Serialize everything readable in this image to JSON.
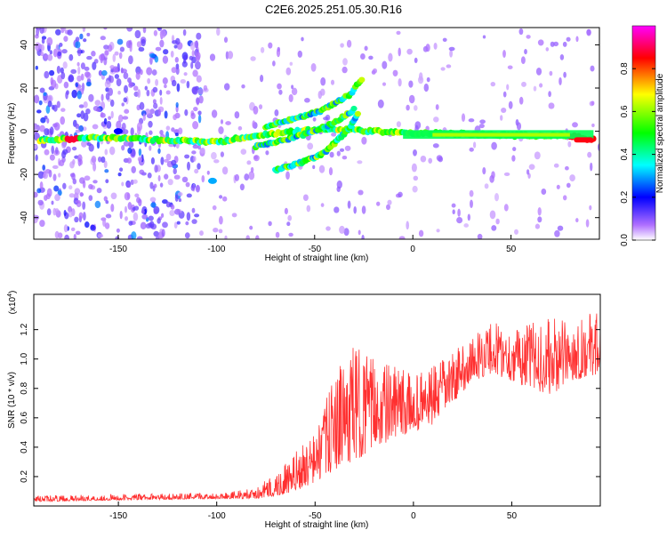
{
  "title": "C2E6.2025.251.05.30.R16",
  "chart_data": [
    {
      "type": "heatmap",
      "xlabel": "Height of straight line (km)",
      "ylabel": "Frequency (Hz)",
      "xlim": [
        -193,
        95
      ],
      "ylim": [
        -50,
        48
      ],
      "x_ticks": [
        -150,
        -100,
        -50,
        0,
        50
      ],
      "y_ticks": [
        -40,
        -20,
        0,
        20,
        40
      ],
      "colorbar": {
        "label": "Normalized spectral amplitude",
        "range": [
          0,
          1
        ],
        "ticks": [
          "0.0",
          "0.2",
          "0.4",
          "0.6",
          "0.8"
        ],
        "colors": [
          "#ffffff",
          "#8000ff",
          "#0000ff",
          "#00ffff",
          "#00ff00",
          "#ffff00",
          "#ff0000",
          "#ff00ff"
        ]
      },
      "ridges": [
        {
          "x": [
            -190,
            -160,
            -130,
            -100,
            -80,
            -60,
            -40,
            -20,
            0,
            20,
            50,
            80,
            92
          ],
          "y": [
            -4,
            -3,
            -4,
            -5,
            -2,
            0,
            1,
            0,
            -1,
            -1,
            -2,
            -2,
            -4
          ]
        },
        {
          "x": [
            -80,
            -65,
            -50,
            -40,
            -30
          ],
          "y": [
            -7,
            -4,
            0,
            4,
            10
          ]
        },
        {
          "x": [
            -70,
            -55,
            -45,
            -38,
            -32,
            -28
          ],
          "y": [
            -18,
            -14,
            -10,
            -4,
            2,
            8
          ]
        },
        {
          "x": [
            -75,
            -60,
            -48,
            -40,
            -32,
            -26
          ],
          "y": [
            2,
            6,
            9,
            13,
            17,
            24
          ]
        }
      ],
      "spots": [
        {
          "x": -102,
          "y": -23,
          "amp": 0.3
        },
        {
          "x": -150,
          "y": 0,
          "amp": 0.2
        }
      ]
    },
    {
      "type": "line",
      "xlabel": "Height of straight line (km)",
      "ylabel": "SNR (10 * v/v)",
      "y_multiplier": "(x10",
      "y_multiplier_exp": "4",
      "xlim": [
        -193,
        95
      ],
      "ylim": [
        0,
        1.44
      ],
      "x_ticks": [
        -150,
        -100,
        -50,
        0,
        50
      ],
      "y_ticks": [
        "0.2",
        "0.4",
        "0.6",
        "0.8",
        "1.0",
        "1.2"
      ],
      "color": "#ff3030",
      "envelope": {
        "x": [
          -193,
          -150,
          -100,
          -80,
          -65,
          -50,
          -40,
          -30,
          -20,
          -10,
          0,
          10,
          20,
          30,
          40,
          50,
          60,
          70,
          80,
          95
        ],
        "low": [
          0.03,
          0.04,
          0.05,
          0.05,
          0.08,
          0.15,
          0.25,
          0.3,
          0.4,
          0.45,
          0.5,
          0.55,
          0.7,
          0.85,
          0.9,
          0.85,
          0.8,
          0.75,
          0.85,
          0.9
        ],
        "high": [
          0.07,
          0.08,
          0.09,
          0.12,
          0.3,
          0.5,
          0.9,
          1.1,
          1.0,
          0.95,
          0.9,
          0.95,
          1.05,
          1.15,
          1.27,
          1.2,
          1.25,
          1.28,
          1.25,
          1.35
        ]
      }
    }
  ]
}
